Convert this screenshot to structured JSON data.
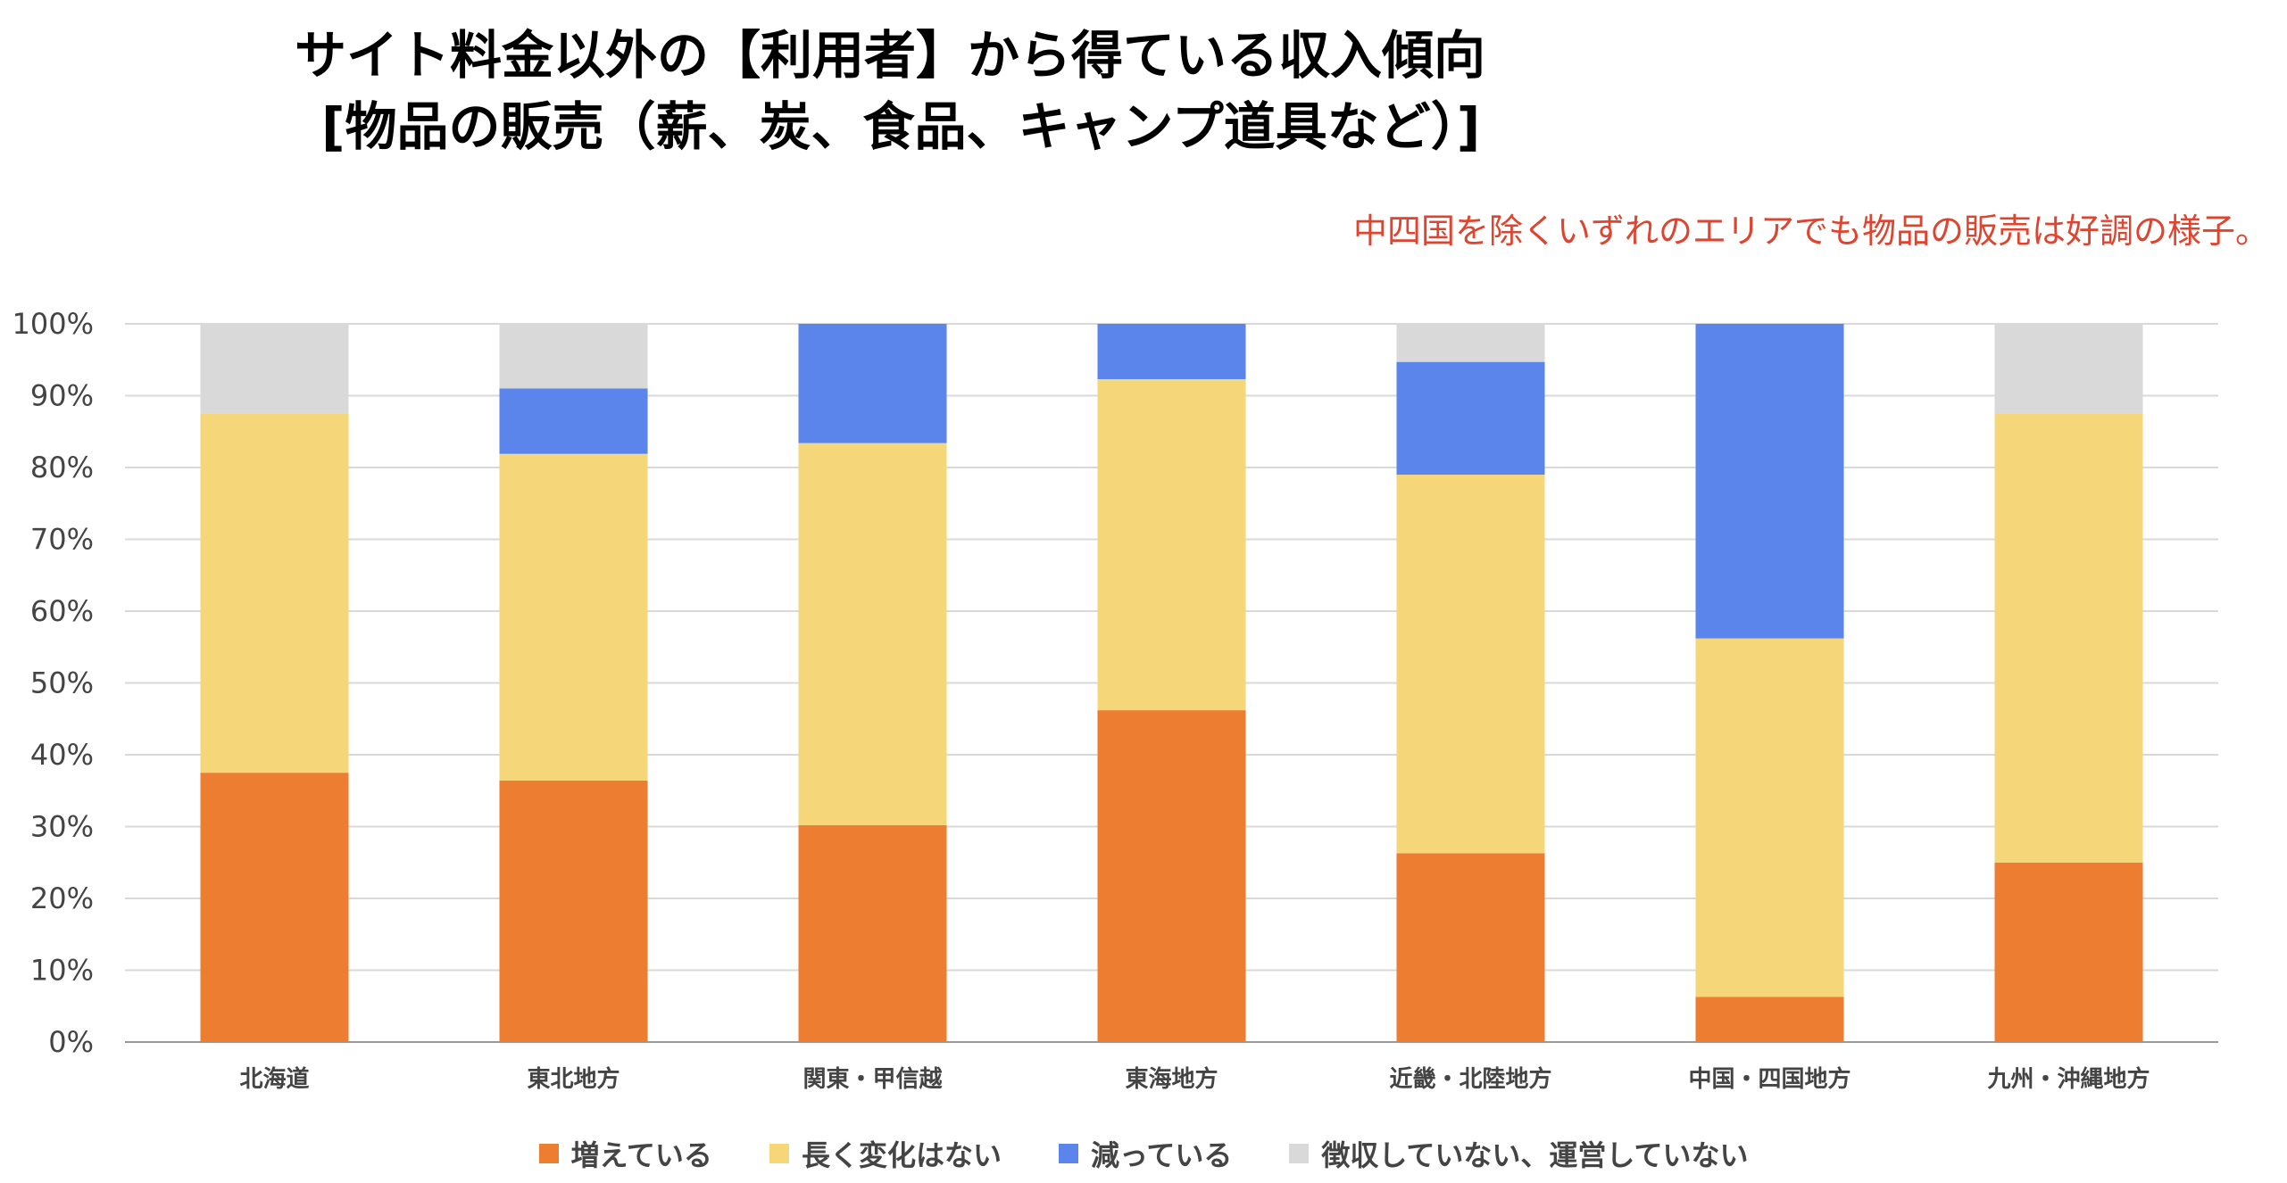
{
  "title": {
    "line1": "サイト料金以外の【利用者】から得ている収入傾向",
    "line2": "[物品の販売（薪、炭、食品、キャンプ道具など）]"
  },
  "annotation": "中四国を除くいずれのエリアでも物品の販売は好調の様子。",
  "chart_data": {
    "type": "bar",
    "stacked": true,
    "title": "サイト料金以外の【利用者】から得ている収入傾向 [物品の販売（薪、炭、食品、キャンプ道具など）]",
    "categories": [
      "北海道",
      "東北地方",
      "関東・甲信越",
      "東海地方",
      "近畿・北陸地方",
      "中国・四国地方",
      "九州・沖縄地方"
    ],
    "series": [
      {
        "name": "増えている",
        "color": "#ed7d31",
        "values": [
          37.5,
          36.4,
          30.2,
          46.2,
          26.3,
          6.3,
          25.0
        ]
      },
      {
        "name": "長く変化はない",
        "color": "#f5d77a",
        "values": [
          50.0,
          45.5,
          53.2,
          46.1,
          52.7,
          49.9,
          62.5
        ]
      },
      {
        "name": "減っている",
        "color": "#5b85ea",
        "values": [
          0.0,
          9.1,
          16.6,
          7.7,
          15.7,
          43.8,
          0.0
        ]
      },
      {
        "name": "徴収していない、運営していない",
        "color": "#d9d9d9",
        "values": [
          12.5,
          9.0,
          0.0,
          0.0,
          5.3,
          0.0,
          12.5
        ]
      }
    ],
    "yticks": [
      "0%",
      "10%",
      "20%",
      "30%",
      "40%",
      "50%",
      "60%",
      "70%",
      "80%",
      "90%",
      "100%"
    ],
    "ylim": [
      0,
      100
    ],
    "xlabel": "",
    "ylabel": "",
    "grid": true,
    "legend_position": "bottom"
  }
}
